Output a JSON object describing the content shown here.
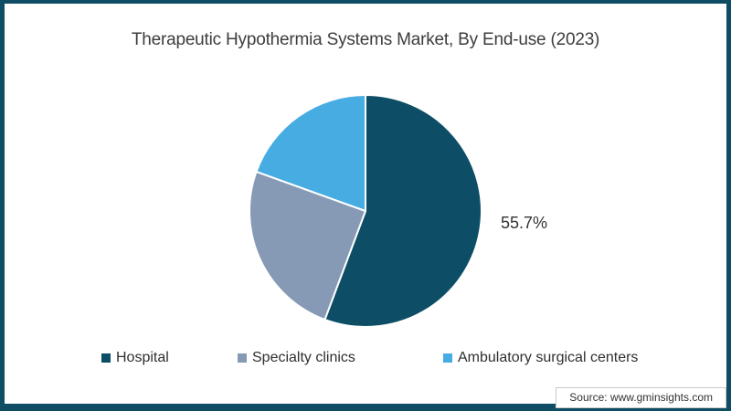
{
  "frame": {
    "border_color": "#0e4d64",
    "background": "#ffffff"
  },
  "chart_data": {
    "type": "pie",
    "title": "Therapeutic Hypothermia Systems Market, By End-use (2023)",
    "categories": [
      "Hospital",
      "Specialty clinics",
      "Ambulatory surgical centers"
    ],
    "values": [
      55.7,
      24.8,
      19.5
    ],
    "value_labels": [
      "55.7%",
      "",
      ""
    ],
    "colors": [
      "#0d4e66",
      "#8699b5",
      "#47ace2"
    ],
    "start_angle_deg": 0,
    "direction": "clockwise",
    "slice_separator_color": "#ffffff",
    "legend_position": "bottom",
    "annotations": [
      {
        "text": "55.7%",
        "slice": "Hospital",
        "position": "right-of-pie"
      }
    ]
  },
  "legend": {
    "items": [
      {
        "label": "Hospital",
        "color": "#0d4e66"
      },
      {
        "label": "Specialty clinics",
        "color": "#8699b5"
      },
      {
        "label": "Ambulatory surgical centers",
        "color": "#47ace2"
      }
    ]
  },
  "source": {
    "text": "Source: www.gminsights.com"
  }
}
